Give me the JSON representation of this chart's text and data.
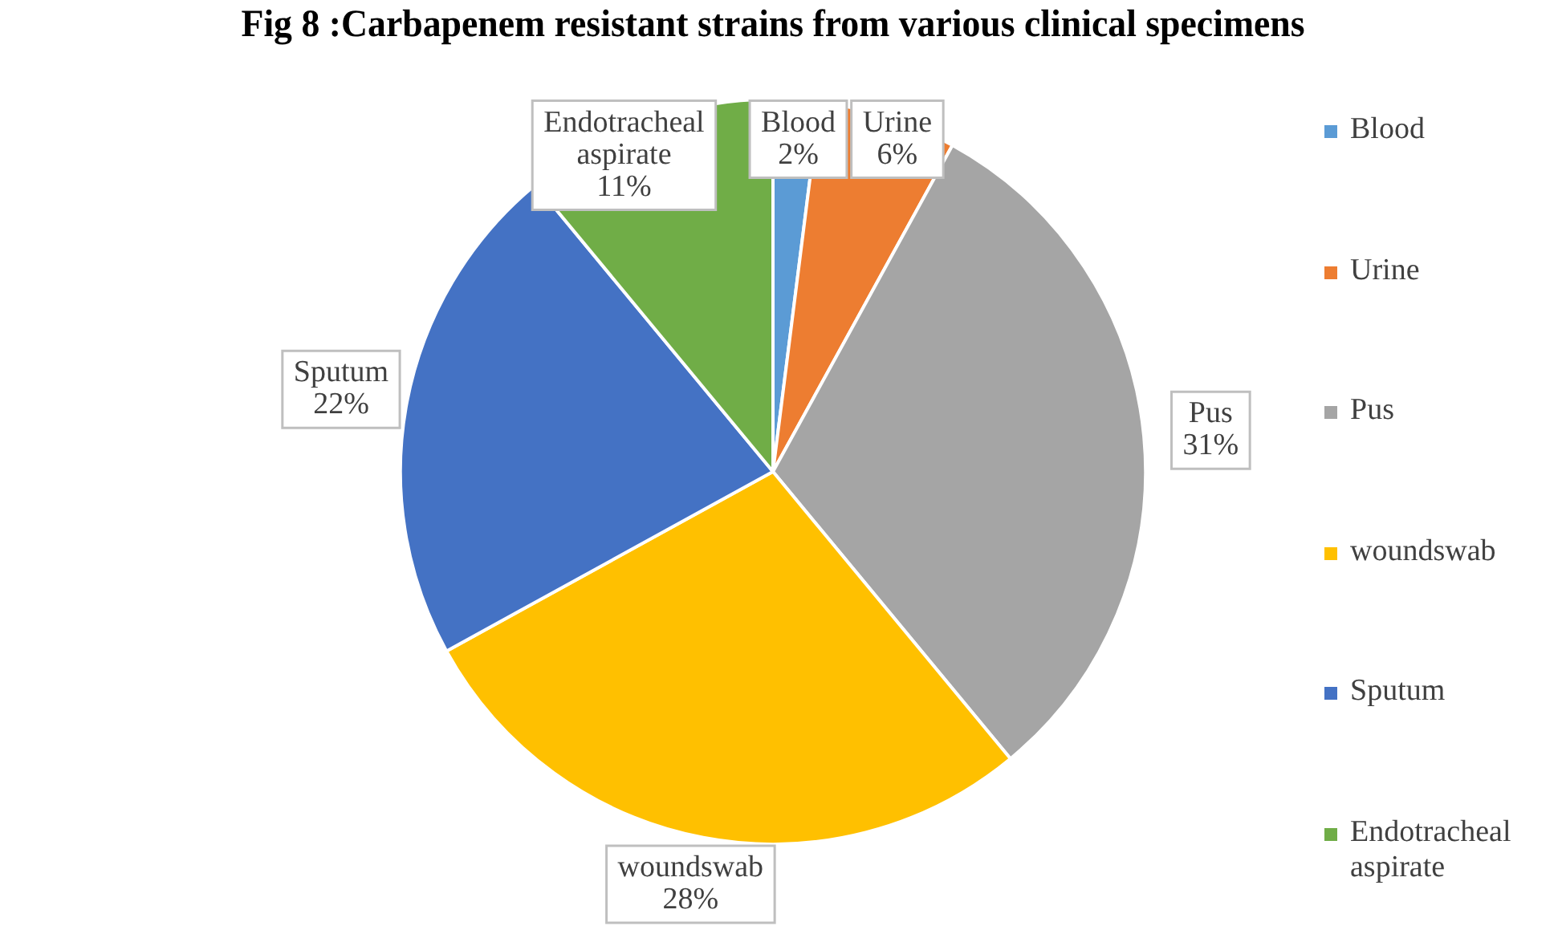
{
  "chart_data": {
    "type": "pie",
    "title": "Fig 8 :Carbapenem resistant strains from various clinical specimens",
    "categories": [
      "Blood",
      "Urine",
      "Pus",
      "woundswab",
      "Sputum",
      "Endotracheal aspirate"
    ],
    "values": [
      2,
      6,
      31,
      28,
      22,
      11
    ],
    "colors": [
      "#5b9bd5",
      "#ed7d31",
      "#a5a5a5",
      "#ffc000",
      "#4472c4",
      "#70ad47"
    ],
    "value_labels": [
      "2%",
      "6%",
      "31%",
      "28%",
      "22%",
      "11%"
    ],
    "legend": "right"
  }
}
